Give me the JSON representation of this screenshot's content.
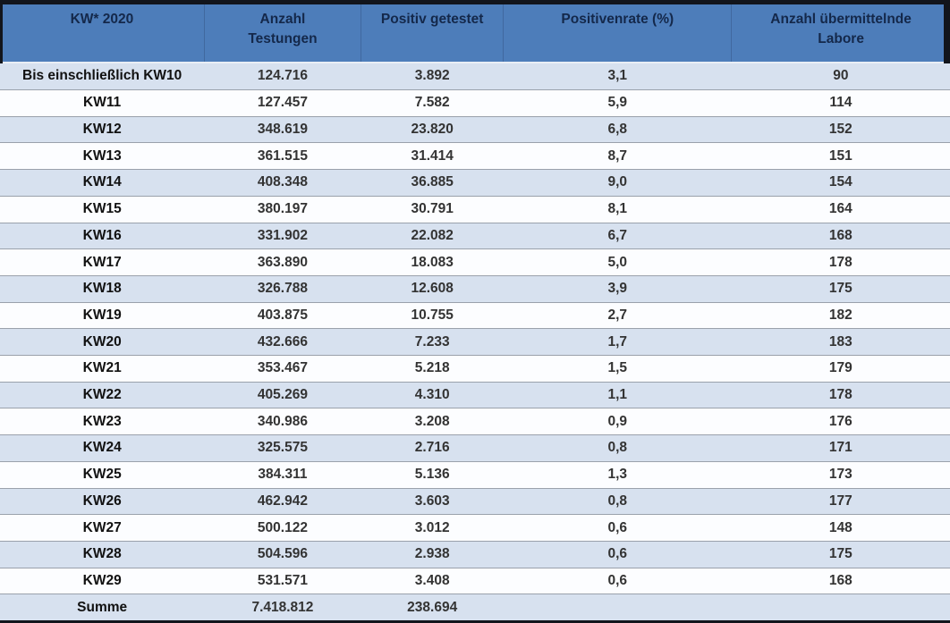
{
  "frame": {
    "edge_color": "#12151c"
  },
  "table": {
    "colors": {
      "header_bg": "#4d7dba",
      "header_text": "#14284a",
      "row_alt_bg": "#d7e1ef",
      "row_bg": "#fcfdff",
      "row_border": "#9aa1ab",
      "label_text": "#111111",
      "value_text": "#333333"
    },
    "columns": [
      {
        "id": "kw",
        "label": "KW* 2020"
      },
      {
        "id": "testungen",
        "label": "Anzahl Testungen"
      },
      {
        "id": "positiv",
        "label": "Positiv getestet"
      },
      {
        "id": "rate",
        "label": "Positivenrate (%)"
      },
      {
        "id": "labore",
        "label": "Anzahl übermittelnde Labore"
      }
    ],
    "rows": [
      {
        "kw": "Bis einschließlich KW10",
        "testungen": "124.716",
        "positiv": "3.892",
        "rate": "3,1",
        "labore": "90"
      },
      {
        "kw": "KW11",
        "testungen": "127.457",
        "positiv": "7.582",
        "rate": "5,9",
        "labore": "114"
      },
      {
        "kw": "KW12",
        "testungen": "348.619",
        "positiv": "23.820",
        "rate": "6,8",
        "labore": "152"
      },
      {
        "kw": "KW13",
        "testungen": "361.515",
        "positiv": "31.414",
        "rate": "8,7",
        "labore": "151"
      },
      {
        "kw": "KW14",
        "testungen": "408.348",
        "positiv": "36.885",
        "rate": "9,0",
        "labore": "154"
      },
      {
        "kw": "KW15",
        "testungen": "380.197",
        "positiv": "30.791",
        "rate": "8,1",
        "labore": "164"
      },
      {
        "kw": "KW16",
        "testungen": "331.902",
        "positiv": "22.082",
        "rate": "6,7",
        "labore": "168"
      },
      {
        "kw": "KW17",
        "testungen": "363.890",
        "positiv": "18.083",
        "rate": "5,0",
        "labore": "178"
      },
      {
        "kw": "KW18",
        "testungen": "326.788",
        "positiv": "12.608",
        "rate": "3,9",
        "labore": "175"
      },
      {
        "kw": "KW19",
        "testungen": "403.875",
        "positiv": "10.755",
        "rate": "2,7",
        "labore": "182"
      },
      {
        "kw": "KW20",
        "testungen": "432.666",
        "positiv": "7.233",
        "rate": "1,7",
        "labore": "183"
      },
      {
        "kw": "KW21",
        "testungen": "353.467",
        "positiv": "5.218",
        "rate": "1,5",
        "labore": "179"
      },
      {
        "kw": "KW22",
        "testungen": "405.269",
        "positiv": "4.310",
        "rate": "1,1",
        "labore": "178"
      },
      {
        "kw": "KW23",
        "testungen": "340.986",
        "positiv": "3.208",
        "rate": "0,9",
        "labore": "176"
      },
      {
        "kw": "KW24",
        "testungen": "325.575",
        "positiv": "2.716",
        "rate": "0,8",
        "labore": "171"
      },
      {
        "kw": "KW25",
        "testungen": "384.311",
        "positiv": "5.136",
        "rate": "1,3",
        "labore": "173"
      },
      {
        "kw": "KW26",
        "testungen": "462.942",
        "positiv": "3.603",
        "rate": "0,8",
        "labore": "177"
      },
      {
        "kw": "KW27",
        "testungen": "500.122",
        "positiv": "3.012",
        "rate": "0,6",
        "labore": "148"
      },
      {
        "kw": "KW28",
        "testungen": "504.596",
        "positiv": "2.938",
        "rate": "0,6",
        "labore": "175"
      },
      {
        "kw": "KW29",
        "testungen": "531.571",
        "positiv": "3.408",
        "rate": "0,6",
        "labore": "168"
      },
      {
        "kw": "Summe",
        "testungen": "7.418.812",
        "positiv": "238.694",
        "rate": "",
        "labore": "",
        "summary": true
      }
    ]
  }
}
